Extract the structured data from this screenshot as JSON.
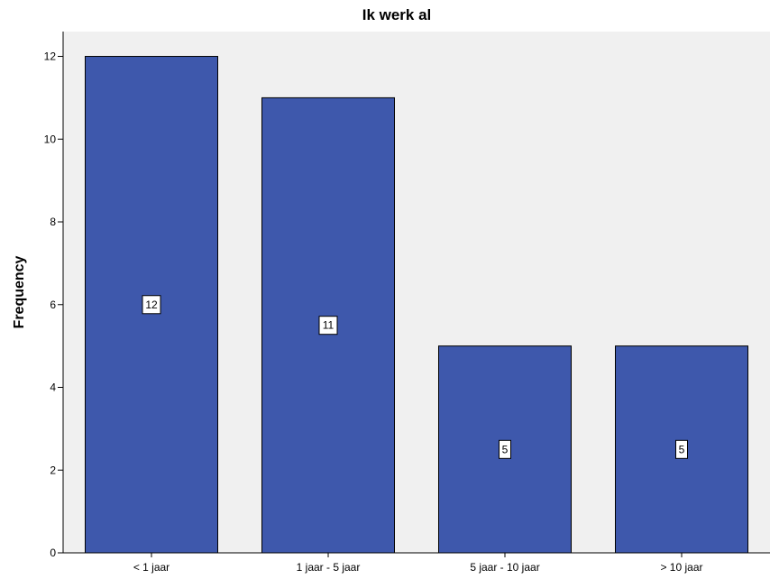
{
  "chart_data": {
    "type": "bar",
    "title": "Ik werk al",
    "xlabel": "",
    "ylabel": "Frequency",
    "categories": [
      "< 1 jaar",
      "1 jaar - 5 jaar",
      "5 jaar - 10 jaar",
      "> 10 jaar"
    ],
    "values": [
      12,
      11,
      5,
      5
    ],
    "data_labels": [
      "12",
      "11",
      "5",
      "5"
    ],
    "ylim": [
      0,
      12.6
    ],
    "yticks": [
      0,
      2,
      4,
      6,
      8,
      10,
      12
    ],
    "grid": false,
    "legend": "none",
    "colors": {
      "bar_fill": "#3E58AC",
      "bar_stroke": "#000000",
      "plot_background": "#F0F0F0",
      "page_background": "#FFFFFF"
    }
  }
}
